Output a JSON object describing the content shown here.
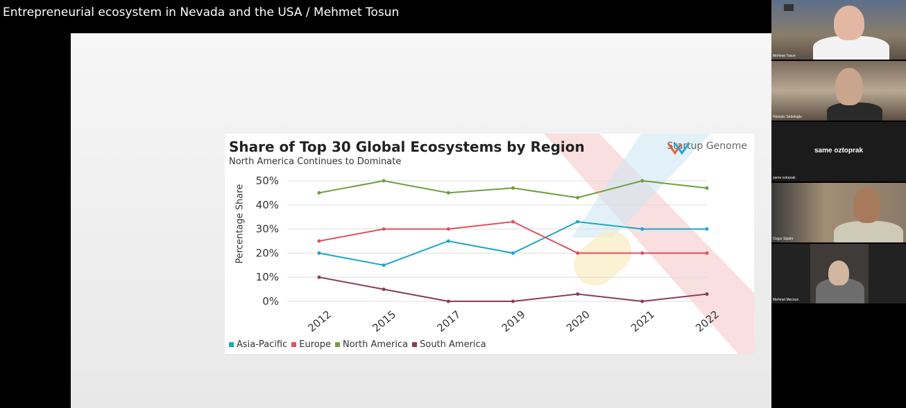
{
  "window": {
    "title": "Entrepreneurial ecosystem in Nevada and the USA / Mehmet Tosun"
  },
  "slide": {
    "brand": "Startup Genome",
    "chart_data": {
      "type": "line",
      "title": "Share of Top 30 Global Ecosystems by Region",
      "subtitle": "North America Continues to Dominate",
      "xlabel": "",
      "ylabel": "Percentage Share",
      "categories": [
        "2012",
        "2015",
        "2017",
        "2019",
        "2020",
        "2021",
        "2022"
      ],
      "yticks": [
        "0%",
        "10%",
        "20%",
        "30%",
        "40%",
        "50%"
      ],
      "ylim": [
        0,
        50
      ],
      "grid": true,
      "legend_position": "bottom",
      "series": [
        {
          "name": "Asia-Pacific",
          "color": "#1aa6c8",
          "values": [
            20,
            15,
            25,
            20,
            33,
            30,
            30
          ]
        },
        {
          "name": "Europe",
          "color": "#e0505f",
          "values": [
            25,
            30,
            30,
            33,
            20,
            20,
            20
          ]
        },
        {
          "name": "North America",
          "color": "#6e9e3e",
          "values": [
            45,
            50,
            45,
            47,
            43,
            50,
            47
          ]
        },
        {
          "name": "South America",
          "color": "#8b3a5e",
          "values": [
            10,
            5,
            0,
            0,
            3,
            0,
            3
          ]
        }
      ]
    }
  },
  "participants": [
    {
      "name": "Mehmet Tosun",
      "label": ""
    },
    {
      "name": "Hüseyin Sebnioglu",
      "label": ""
    },
    {
      "name": "same oztoprak",
      "label": "same oztoprak"
    },
    {
      "name": "Ozgur Sipahi",
      "label": ""
    },
    {
      "name": "Mehmet Mecnun",
      "label": ""
    }
  ]
}
